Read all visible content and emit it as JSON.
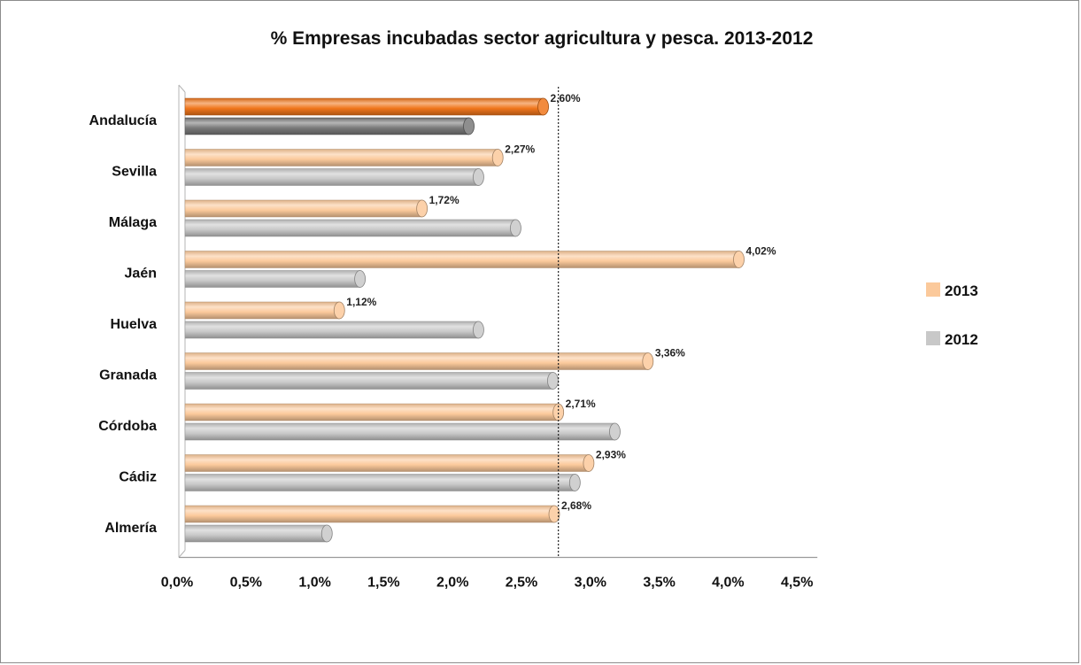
{
  "chart_data": {
    "type": "bar",
    "orientation": "horizontal",
    "title": "% Empresas incubadas sector agricultura y pesca. 2013-2012",
    "categories": [
      "Andalucía",
      "Sevilla",
      "Málaga",
      "Jaén",
      "Huelva",
      "Granada",
      "Córdoba",
      "Cádiz",
      "Almería"
    ],
    "series": [
      {
        "name": "2013",
        "values": [
          2.6,
          2.27,
          1.72,
          4.02,
          1.12,
          3.36,
          2.71,
          2.93,
          2.68
        ],
        "data_labels": [
          "2,60%",
          "2,27%",
          "1,72%",
          "4,02%",
          "1,12%",
          "3,36%",
          "2,71%",
          "2,93%",
          "2,68%"
        ],
        "color": "#fbc99b",
        "highlight_color": "#f0761c"
      },
      {
        "name": "2012",
        "values": [
          2.06,
          2.13,
          2.4,
          1.27,
          2.13,
          2.67,
          3.12,
          2.83,
          1.03
        ],
        "color": "#c8c8c8",
        "highlight_color": "#7a7a7a"
      }
    ],
    "x_ticks": [
      "0,0%",
      "0,5%",
      "1,0%",
      "1,5%",
      "2,0%",
      "2,5%",
      "3,0%",
      "3,5%",
      "4,0%",
      "4,5%"
    ],
    "xlim": [
      0,
      4.5
    ],
    "reference_line": 2.71,
    "highlight_category": "Andalucía",
    "legend_position": "right",
    "grid": false
  }
}
